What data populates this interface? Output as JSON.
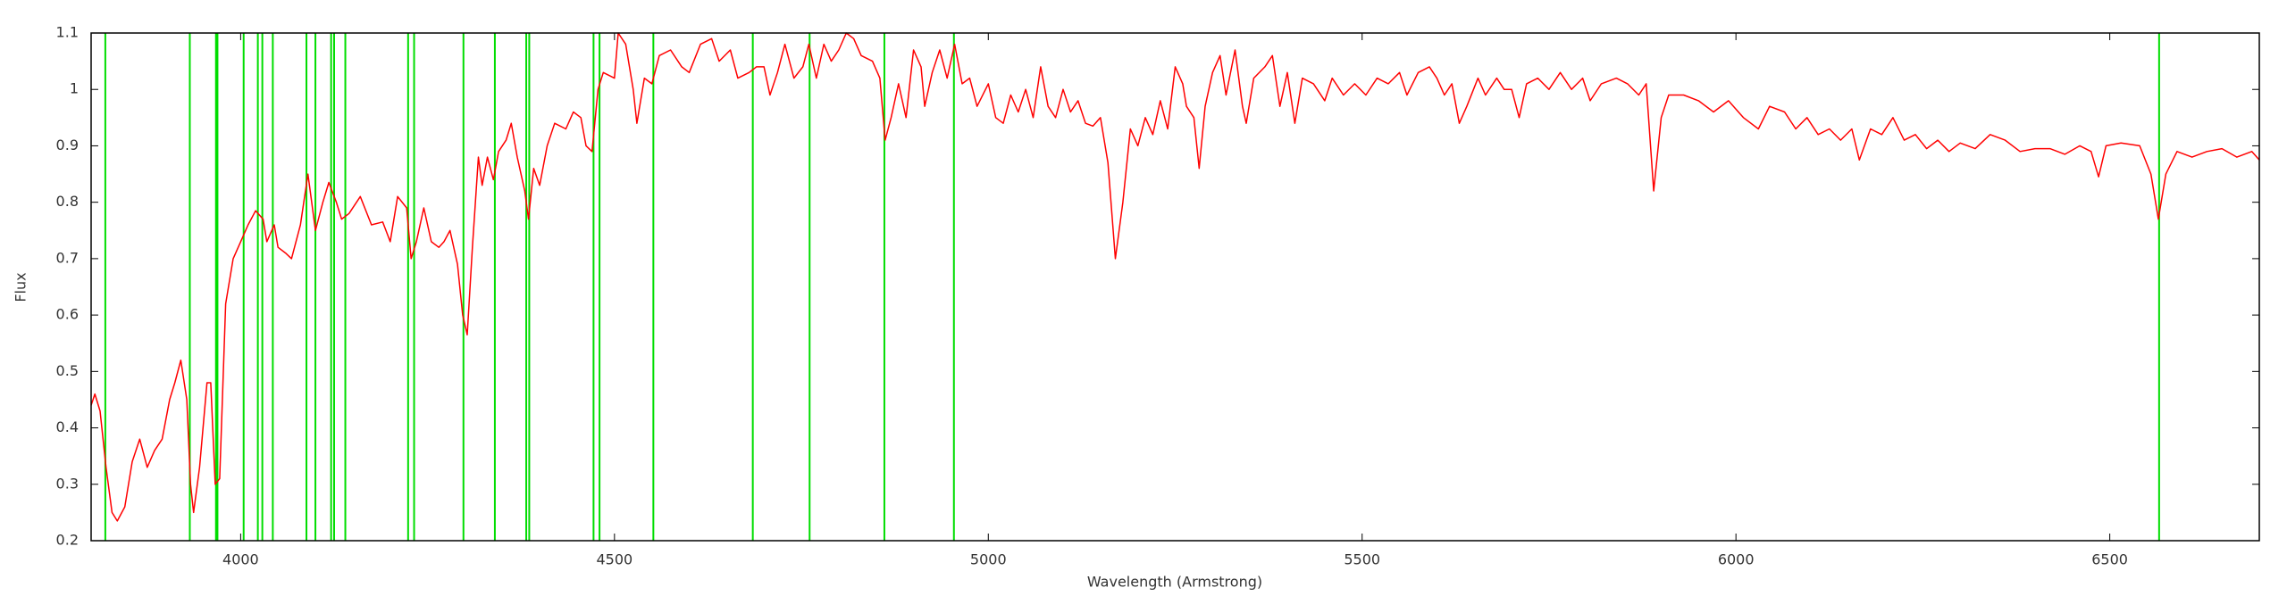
{
  "chart_data": {
    "type": "line",
    "xlabel": "Wavelength (Armstrong)",
    "ylabel": "Flux",
    "xlim": [
      3800,
      6700
    ],
    "xticks": [
      4000,
      4500,
      5000,
      5500,
      6000,
      6500
    ],
    "ylim": [
      0.2,
      1.1
    ],
    "yticks": [
      0.2,
      0.3,
      0.4,
      0.5,
      0.6,
      0.7,
      0.8,
      0.9,
      1,
      1.1
    ],
    "vlines": {
      "color": "#00dd00",
      "values": [
        3819,
        3932,
        3967,
        3969,
        4004,
        4023,
        4029,
        4043,
        4088,
        4100,
        4121,
        4125,
        4140,
        4224,
        4232,
        4298,
        4340,
        4382,
        4386,
        4472,
        4480,
        4552,
        4685,
        4761,
        4861,
        4954,
        6566
      ]
    },
    "x": [
      3800,
      3805,
      3812,
      3820,
      3828,
      3835,
      3845,
      3855,
      3865,
      3875,
      3885,
      3895,
      3905,
      3912,
      3920,
      3928,
      3933,
      3937,
      3945,
      3955,
      3960,
      3966,
      3972,
      3980,
      3990,
      4000,
      4010,
      4020,
      4030,
      4035,
      4045,
      4050,
      4060,
      4068,
      4080,
      4090,
      4100,
      4110,
      4118,
      4128,
      4135,
      4145,
      4160,
      4175,
      4190,
      4200,
      4210,
      4222,
      4228,
      4235,
      4245,
      4255,
      4265,
      4272,
      4280,
      4290,
      4297,
      4303,
      4310,
      4318,
      4323,
      4330,
      4338,
      4345,
      4355,
      4362,
      4370,
      4380,
      4385,
      4392,
      4400,
      4410,
      4420,
      4435,
      4445,
      4455,
      4462,
      4470,
      4478,
      4485,
      4500,
      4505,
      4515,
      4525,
      4530,
      4540,
      4550,
      4560,
      4575,
      4590,
      4600,
      4615,
      4630,
      4640,
      4655,
      4665,
      4680,
      4690,
      4700,
      4708,
      4718,
      4728,
      4740,
      4752,
      4760,
      4770,
      4780,
      4790,
      4800,
      4810,
      4820,
      4830,
      4845,
      4855,
      4862,
      4870,
      4880,
      4890,
      4900,
      4910,
      4915,
      4925,
      4935,
      4945,
      4955,
      4965,
      4975,
      4985,
      5000,
      5010,
      5020,
      5030,
      5040,
      5050,
      5060,
      5070,
      5080,
      5090,
      5100,
      5110,
      5120,
      5130,
      5140,
      5150,
      5160,
      5170,
      5180,
      5190,
      5200,
      5210,
      5220,
      5230,
      5240,
      5250,
      5260,
      5265,
      5275,
      5282,
      5290,
      5300,
      5310,
      5318,
      5330,
      5340,
      5345,
      5355,
      5370,
      5380,
      5390,
      5400,
      5410,
      5420,
      5435,
      5450,
      5460,
      5475,
      5490,
      5505,
      5520,
      5535,
      5550,
      5560,
      5575,
      5590,
      5600,
      5610,
      5620,
      5630,
      5640,
      5655,
      5665,
      5680,
      5690,
      5700,
      5710,
      5720,
      5735,
      5750,
      5765,
      5780,
      5795,
      5805,
      5820,
      5840,
      5855,
      5870,
      5880,
      5890,
      5900,
      5910,
      5930,
      5950,
      5970,
      5990,
      6010,
      6030,
      6045,
      6065,
      6080,
      6095,
      6110,
      6125,
      6140,
      6155,
      6165,
      6180,
      6195,
      6210,
      6225,
      6240,
      6255,
      6270,
      6285,
      6300,
      6320,
      6340,
      6360,
      6380,
      6400,
      6420,
      6440,
      6460,
      6475,
      6485,
      6495,
      6515,
      6540,
      6555,
      6565,
      6575,
      6590,
      6610,
      6630,
      6650,
      6670,
      6690,
      6700
    ],
    "series": [
      {
        "color": "#ff0000",
        "values": [
          0.44,
          0.46,
          0.43,
          0.33,
          0.25,
          0.235,
          0.26,
          0.34,
          0.38,
          0.33,
          0.36,
          0.38,
          0.45,
          0.48,
          0.52,
          0.45,
          0.3,
          0.25,
          0.33,
          0.48,
          0.48,
          0.3,
          0.31,
          0.62,
          0.7,
          0.73,
          0.76,
          0.785,
          0.77,
          0.73,
          0.76,
          0.72,
          0.71,
          0.7,
          0.76,
          0.85,
          0.75,
          0.8,
          0.835,
          0.8,
          0.77,
          0.78,
          0.81,
          0.76,
          0.765,
          0.73,
          0.81,
          0.79,
          0.7,
          0.73,
          0.79,
          0.73,
          0.72,
          0.73,
          0.75,
          0.69,
          0.6,
          0.565,
          0.72,
          0.88,
          0.83,
          0.88,
          0.84,
          0.89,
          0.91,
          0.94,
          0.88,
          0.82,
          0.77,
          0.86,
          0.83,
          0.9,
          0.94,
          0.93,
          0.96,
          0.95,
          0.9,
          0.89,
          1.0,
          1.03,
          1.02,
          1.1,
          1.08,
          1.0,
          0.94,
          1.02,
          1.01,
          1.06,
          1.07,
          1.04,
          1.03,
          1.08,
          1.09,
          1.05,
          1.07,
          1.02,
          1.03,
          1.04,
          1.04,
          0.99,
          1.03,
          1.08,
          1.02,
          1.04,
          1.08,
          1.02,
          1.08,
          1.05,
          1.07,
          1.1,
          1.09,
          1.06,
          1.05,
          1.02,
          0.91,
          0.95,
          1.01,
          0.95,
          1.07,
          1.04,
          0.97,
          1.03,
          1.07,
          1.02,
          1.08,
          1.01,
          1.02,
          0.97,
          1.01,
          0.95,
          0.94,
          0.99,
          0.96,
          1.0,
          0.95,
          1.04,
          0.97,
          0.95,
          1.0,
          0.96,
          0.98,
          0.94,
          0.935,
          0.95,
          0.87,
          0.7,
          0.8,
          0.93,
          0.9,
          0.95,
          0.92,
          0.98,
          0.93,
          1.04,
          1.01,
          0.97,
          0.95,
          0.86,
          0.97,
          1.03,
          1.06,
          0.99,
          1.07,
          0.97,
          0.94,
          1.02,
          1.04,
          1.06,
          0.97,
          1.03,
          0.94,
          1.02,
          1.01,
          0.98,
          1.02,
          0.99,
          1.01,
          0.99,
          1.02,
          1.01,
          1.03,
          0.99,
          1.03,
          1.04,
          1.02,
          0.99,
          1.01,
          0.94,
          0.97,
          1.02,
          0.99,
          1.02,
          1.0,
          1.0,
          0.95,
          1.01,
          1.02,
          1.0,
          1.03,
          1.0,
          1.02,
          0.98,
          1.01,
          1.02,
          1.01,
          0.99,
          1.01,
          0.82,
          0.95,
          0.99,
          0.99,
          0.98,
          0.96,
          0.98,
          0.95,
          0.93,
          0.97,
          0.96,
          0.93,
          0.95,
          0.92,
          0.93,
          0.91,
          0.93,
          0.875,
          0.93,
          0.92,
          0.95,
          0.91,
          0.92,
          0.895,
          0.91,
          0.89,
          0.905,
          0.895,
          0.92,
          0.91,
          0.89,
          0.895,
          0.895,
          0.885,
          0.9,
          0.89,
          0.845,
          0.9,
          0.905,
          0.9,
          0.85,
          0.77,
          0.85,
          0.89,
          0.88,
          0.89,
          0.895,
          0.88,
          0.89,
          0.875
        ]
      }
    ]
  }
}
